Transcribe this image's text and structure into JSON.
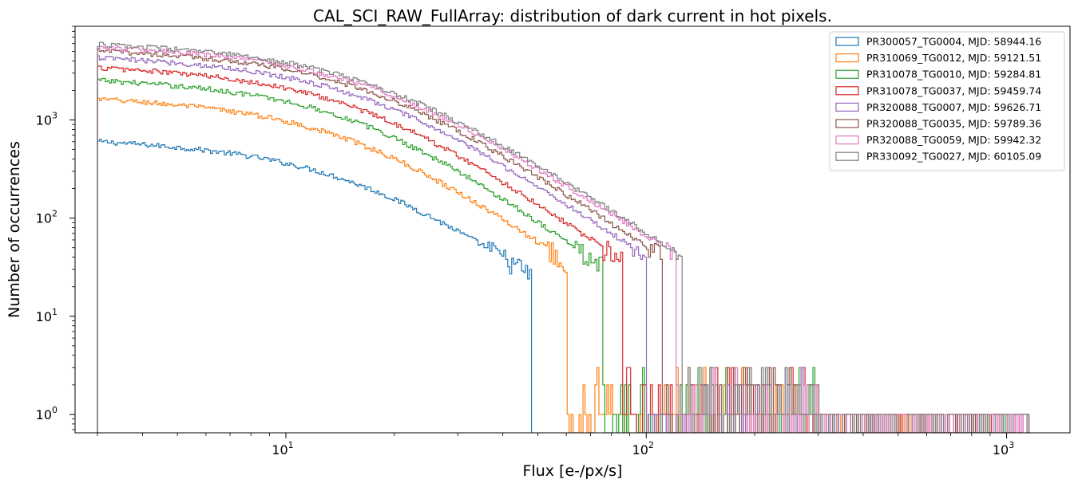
{
  "chart_data": {
    "type": "histogram",
    "title": "CAL_SCI_RAW_FullArray: distribution of dark current in hot pixels.",
    "xlabel": "Flux [e-/px/s]",
    "ylabel": "Number of occurrences",
    "xscale": "log",
    "yscale": "log",
    "xlim": [
      2.6,
      1500
    ],
    "ylim": [
      0.65,
      9000
    ],
    "grid": false,
    "legend_position": "top-right",
    "x_major_ticks": [
      10,
      100,
      1000
    ],
    "x_tick_labels": [
      "10",
      "10",
      "10"
    ],
    "x_tick_exponents": [
      "1",
      "2",
      "3"
    ],
    "y_major_ticks": [
      1,
      10,
      100,
      1000
    ],
    "y_tick_labels": [
      "10",
      "10",
      "10",
      "10"
    ],
    "y_tick_exponents": [
      "0",
      "1",
      "2",
      "3"
    ],
    "bin_start": 3.0,
    "series": [
      {
        "name": "PR300057_TG0004, MJD: 58944.16",
        "color": "#1f77b4",
        "peak": 620,
        "break_x": 15,
        "tail_slope": 2.3,
        "x_max": 48,
        "sparse_until": 48
      },
      {
        "name": "PR310069_TG0012, MJD: 59121.51",
        "color": "#ff7f0e",
        "peak": 1680,
        "break_x": 15,
        "tail_slope": 2.4,
        "x_max": 60,
        "sparse_until": 700
      },
      {
        "name": "PR310078_TG0010, MJD: 59284.81",
        "color": "#2ca02c",
        "peak": 2600,
        "break_x": 16,
        "tail_slope": 2.5,
        "x_max": 75,
        "sparse_until": 1000
      },
      {
        "name": "PR310078_TG0037, MJD: 59459.74",
        "color": "#d62728",
        "peak": 3500,
        "break_x": 16,
        "tail_slope": 2.4,
        "x_max": 85,
        "sparse_until": 1150
      },
      {
        "name": "PR320088_TG0007, MJD: 59626.71",
        "color": "#9467bd",
        "peak": 4400,
        "break_x": 16.5,
        "tail_slope": 2.3,
        "x_max": 100,
        "sparse_until": 1150
      },
      {
        "name": "PR320088_TG0035, MJD: 59789.36",
        "color": "#8c564b",
        "peak": 5200,
        "break_x": 17,
        "tail_slope": 2.3,
        "x_max": 110,
        "sparse_until": 1150
      },
      {
        "name": "PR320088_TG0059, MJD: 59942.32",
        "color": "#e377c2",
        "peak": 5600,
        "break_x": 17,
        "tail_slope": 2.2,
        "x_max": 120,
        "sparse_until": 1150
      },
      {
        "name": "PR330092_TG0027, MJD: 60105.09",
        "color": "#7f7f7f",
        "peak": 6000,
        "break_x": 17,
        "tail_slope": 2.2,
        "x_max": 125,
        "sparse_until": 1150
      }
    ]
  }
}
